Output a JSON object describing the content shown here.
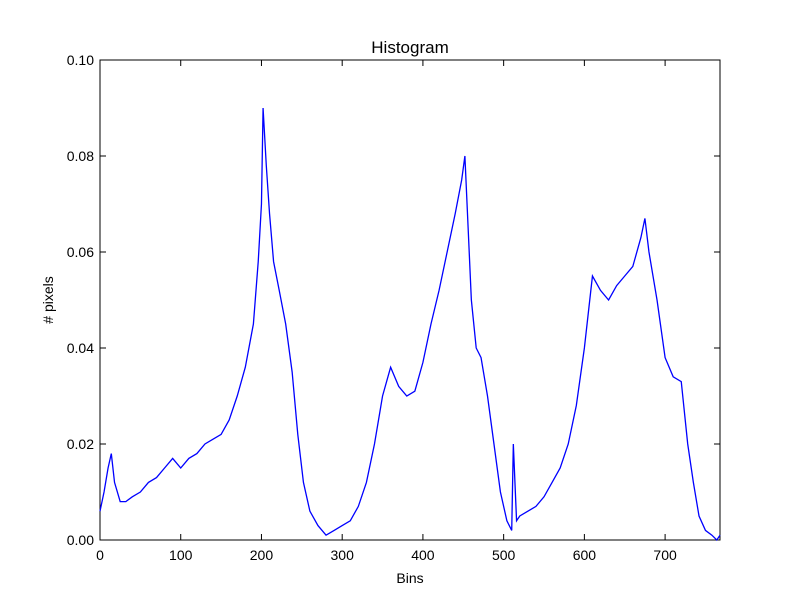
{
  "chart_data": {
    "type": "line",
    "title": "Histogram",
    "x_label": "Bins",
    "y_label": "# pixels",
    "xlim": [
      0,
      768
    ],
    "ylim": [
      0,
      0.1
    ],
    "xticks": [
      0,
      100,
      200,
      300,
      400,
      500,
      600,
      700
    ],
    "yticks": [
      {
        "value": 0,
        "label": "0.00"
      },
      {
        "value": 0.02,
        "label": "0.02"
      },
      {
        "value": 0.04,
        "label": "0.04"
      },
      {
        "value": 0.06,
        "label": "0.06"
      },
      {
        "value": 0.08,
        "label": "0.08"
      },
      {
        "value": 0.1,
        "label": "0.10"
      }
    ],
    "x": [
      0,
      5,
      10,
      14,
      18,
      25,
      32,
      40,
      50,
      60,
      70,
      80,
      90,
      100,
      110,
      120,
      130,
      140,
      150,
      160,
      170,
      180,
      190,
      196,
      200,
      202,
      206,
      210,
      215,
      222,
      230,
      238,
      245,
      252,
      260,
      270,
      280,
      290,
      300,
      310,
      320,
      330,
      340,
      350,
      360,
      370,
      380,
      390,
      400,
      410,
      420,
      430,
      440,
      448,
      452,
      456,
      460,
      466,
      472,
      480,
      488,
      496,
      504,
      510,
      512,
      516,
      520,
      530,
      540,
      550,
      560,
      570,
      580,
      590,
      600,
      610,
      620,
      630,
      640,
      650,
      660,
      670,
      675,
      680,
      690,
      700,
      710,
      720,
      728,
      735,
      742,
      750,
      758,
      764,
      768
    ],
    "series": [
      {
        "color": "#0000ff",
        "values": [
          0.006,
          0.01,
          0.015,
          0.018,
          0.012,
          0.008,
          0.008,
          0.009,
          0.01,
          0.012,
          0.013,
          0.015,
          0.017,
          0.015,
          0.017,
          0.018,
          0.02,
          0.021,
          0.022,
          0.025,
          0.03,
          0.036,
          0.045,
          0.058,
          0.07,
          0.09,
          0.078,
          0.068,
          0.058,
          0.052,
          0.045,
          0.035,
          0.022,
          0.012,
          0.006,
          0.003,
          0.001,
          0.002,
          0.003,
          0.004,
          0.007,
          0.012,
          0.02,
          0.03,
          0.036,
          0.032,
          0.03,
          0.031,
          0.037,
          0.045,
          0.052,
          0.06,
          0.068,
          0.075,
          0.08,
          0.065,
          0.05,
          0.04,
          0.038,
          0.03,
          0.02,
          0.01,
          0.004,
          0.002,
          0.02,
          0.004,
          0.005,
          0.006,
          0.007,
          0.009,
          0.012,
          0.015,
          0.02,
          0.028,
          0.04,
          0.055,
          0.052,
          0.05,
          0.053,
          0.055,
          0.057,
          0.063,
          0.067,
          0.06,
          0.05,
          0.038,
          0.034,
          0.033,
          0.02,
          0.012,
          0.005,
          0.002,
          0.001,
          0.0,
          0.001
        ]
      }
    ]
  }
}
